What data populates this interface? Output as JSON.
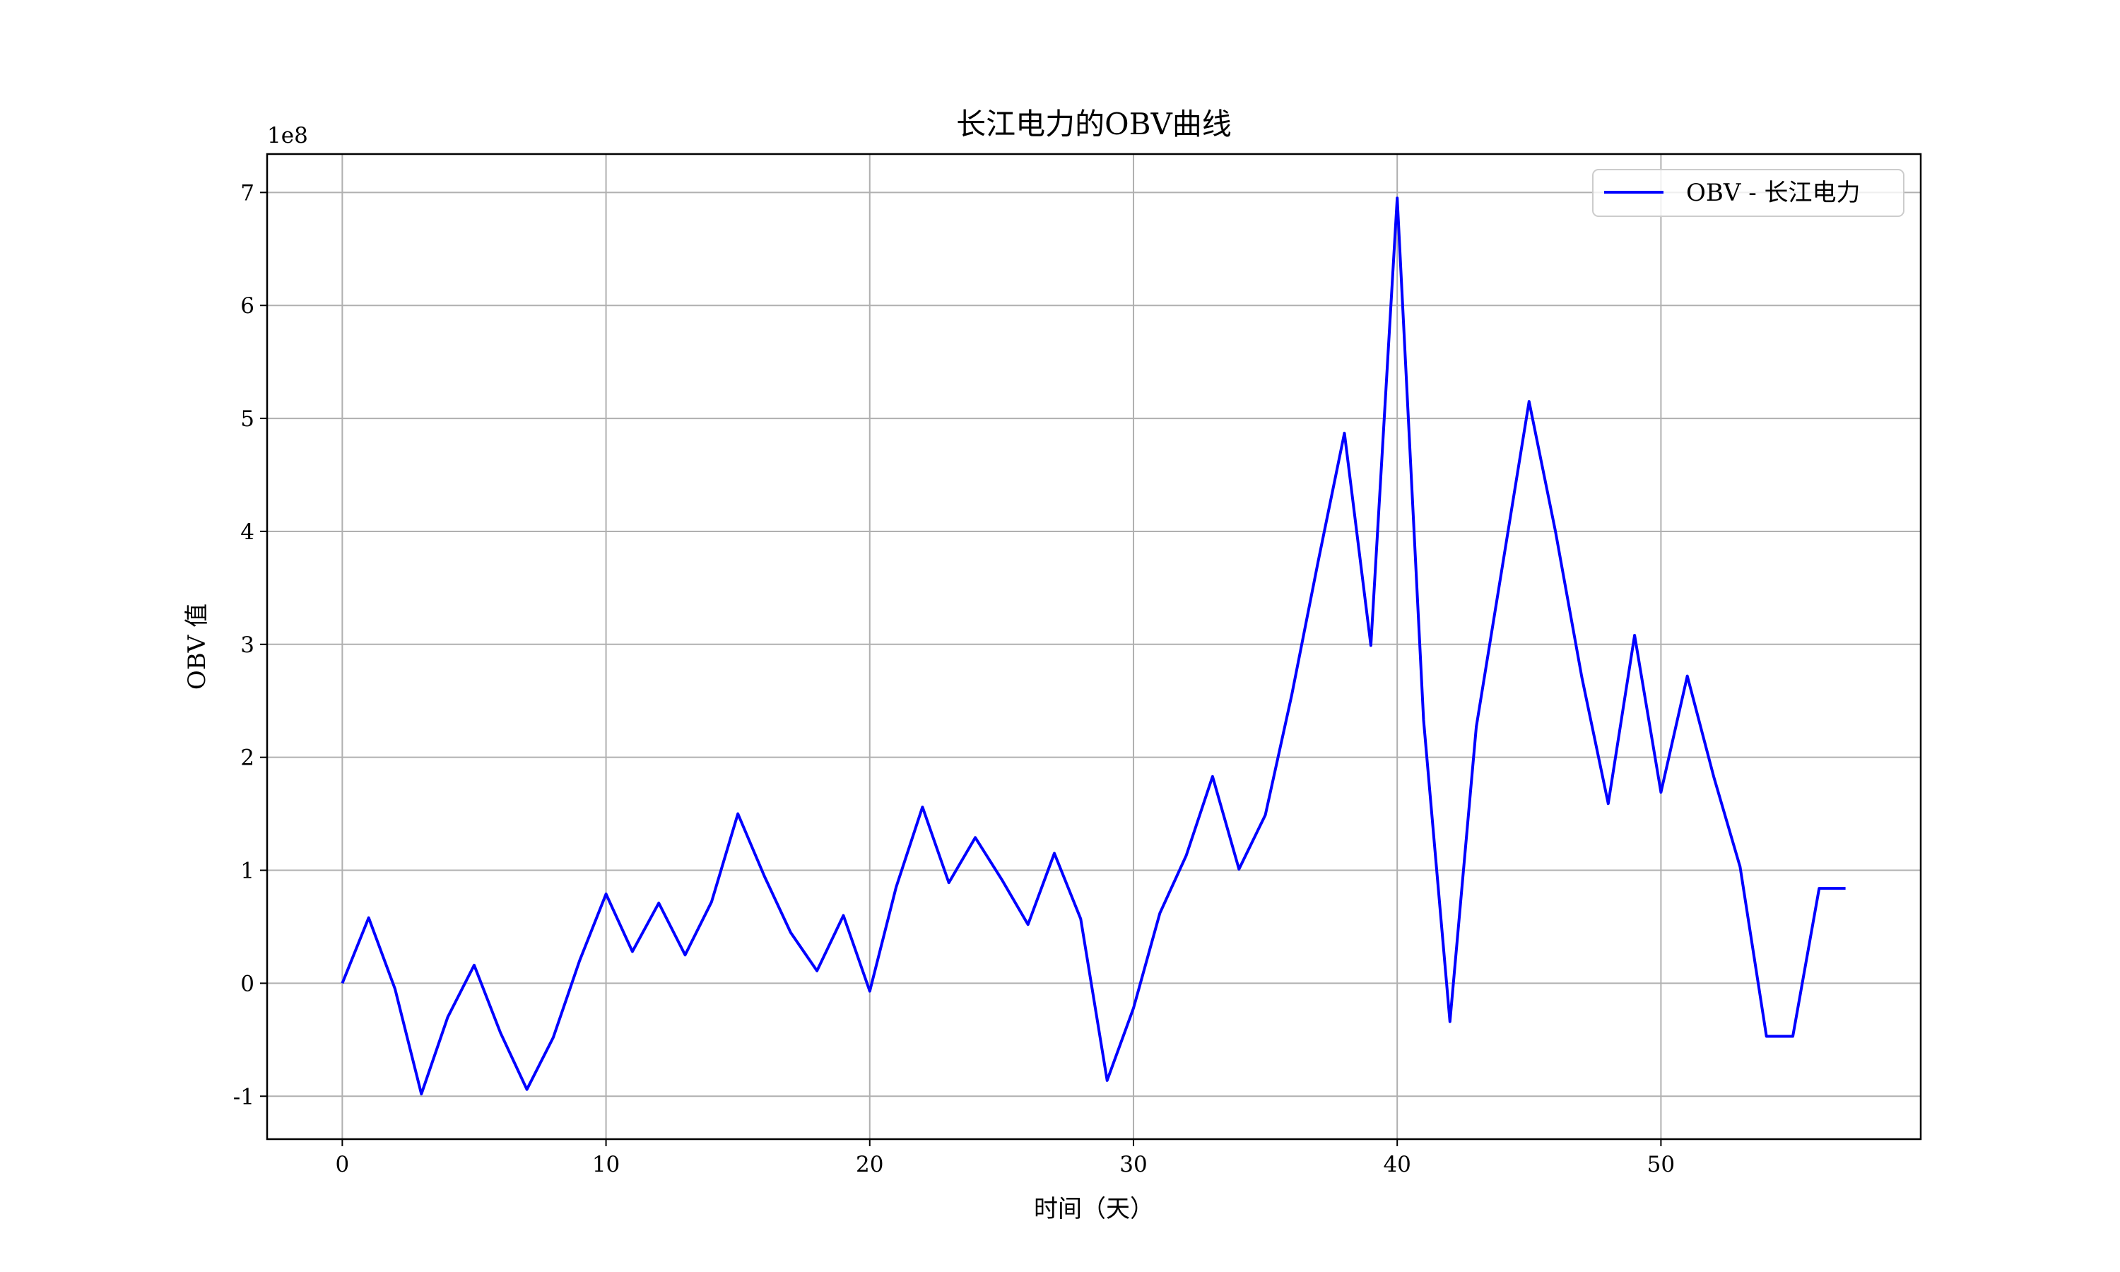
{
  "chart_data": {
    "type": "line",
    "title": "长江电力的OBV曲线",
    "xlabel": "时间（天）",
    "ylabel": "OBV 值",
    "y_scale_label": "1e8",
    "y_scale_factor": 100000000,
    "xlim": [
      -2.85,
      59.85
    ],
    "ylim": [
      -1.38,
      7.34
    ],
    "x_ticks": [
      0,
      10,
      20,
      30,
      40,
      50
    ],
    "y_ticks": [
      -1,
      0,
      1,
      2,
      3,
      4,
      5,
      6,
      7
    ],
    "grid": true,
    "legend_position": "top-right",
    "series": [
      {
        "name": "OBV - 长江电力",
        "color": "#0000ff",
        "x": [
          0,
          1,
          2,
          3,
          4,
          5,
          6,
          7,
          8,
          9,
          10,
          11,
          12,
          13,
          14,
          15,
          16,
          17,
          18,
          19,
          20,
          21,
          22,
          23,
          24,
          25,
          26,
          27,
          28,
          29,
          30,
          31,
          32,
          33,
          34,
          35,
          36,
          37,
          38,
          39,
          40,
          41,
          42,
          43,
          44,
          45,
          46,
          47,
          48,
          49,
          50,
          51,
          52,
          53,
          54,
          55,
          56,
          57
        ],
        "values": [
          0.0,
          0.58,
          -0.05,
          -0.98,
          -0.3,
          0.16,
          -0.44,
          -0.94,
          -0.48,
          0.2,
          0.79,
          0.28,
          0.71,
          0.25,
          0.72,
          1.5,
          0.95,
          0.45,
          0.11,
          0.6,
          -0.07,
          0.85,
          1.56,
          0.89,
          1.29,
          0.92,
          0.52,
          1.15,
          0.57,
          -0.86,
          -0.22,
          0.62,
          1.13,
          1.83,
          1.01,
          1.49,
          2.55,
          3.73,
          4.87,
          2.99,
          6.95,
          2.33,
          -0.34,
          2.27,
          3.71,
          5.15,
          4.0,
          2.71,
          1.59,
          3.08,
          1.69,
          2.72,
          1.83,
          1.03,
          -0.47,
          -0.47,
          0.84,
          0.84
        ]
      }
    ]
  }
}
